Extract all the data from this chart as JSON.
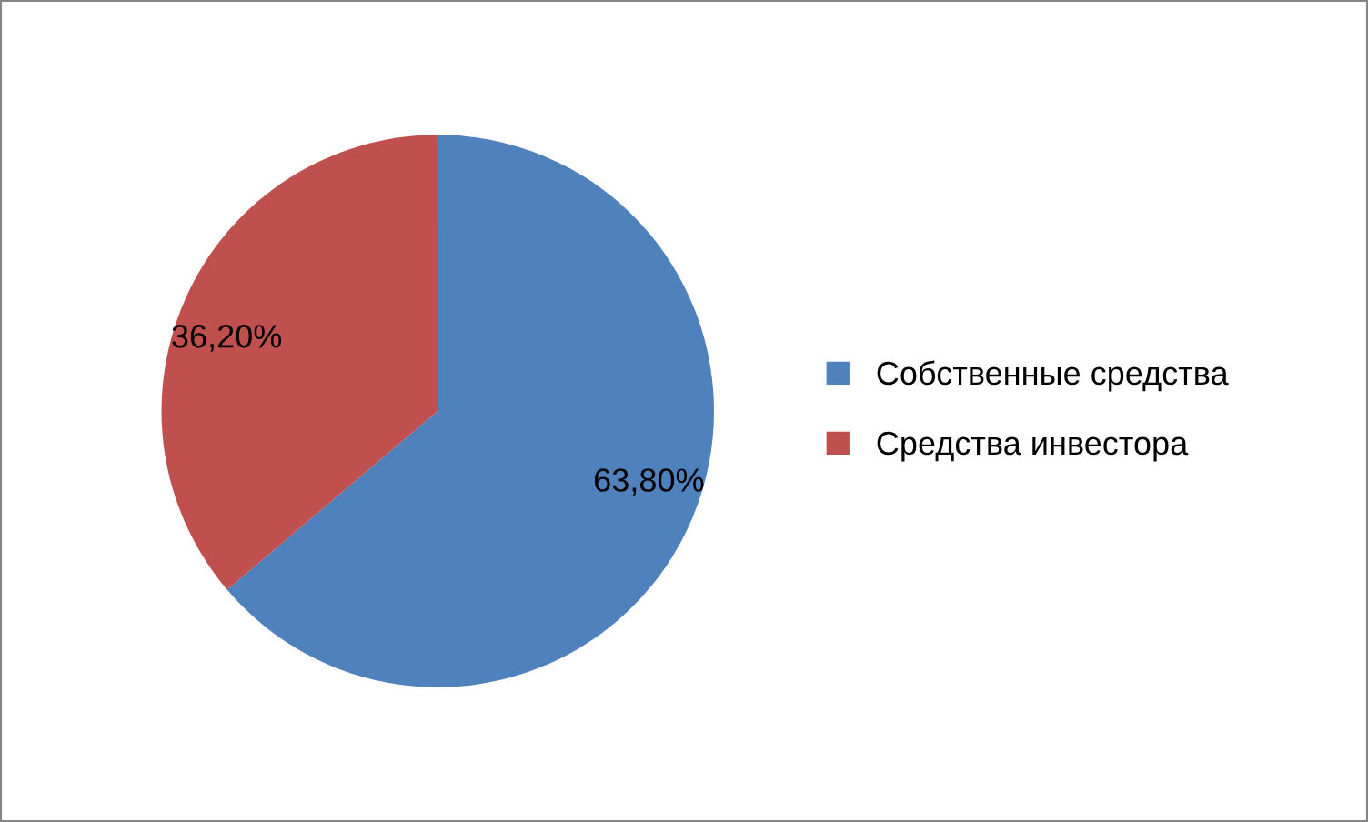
{
  "chart_data": {
    "type": "pie",
    "categories": [
      "Собственные средства",
      "Средства инвестора"
    ],
    "values": [
      63.8,
      36.2
    ],
    "value_labels": [
      "63,80%",
      "36,20%"
    ],
    "colors": [
      "#4f81bd",
      "#c0504d"
    ],
    "legend": "right"
  }
}
